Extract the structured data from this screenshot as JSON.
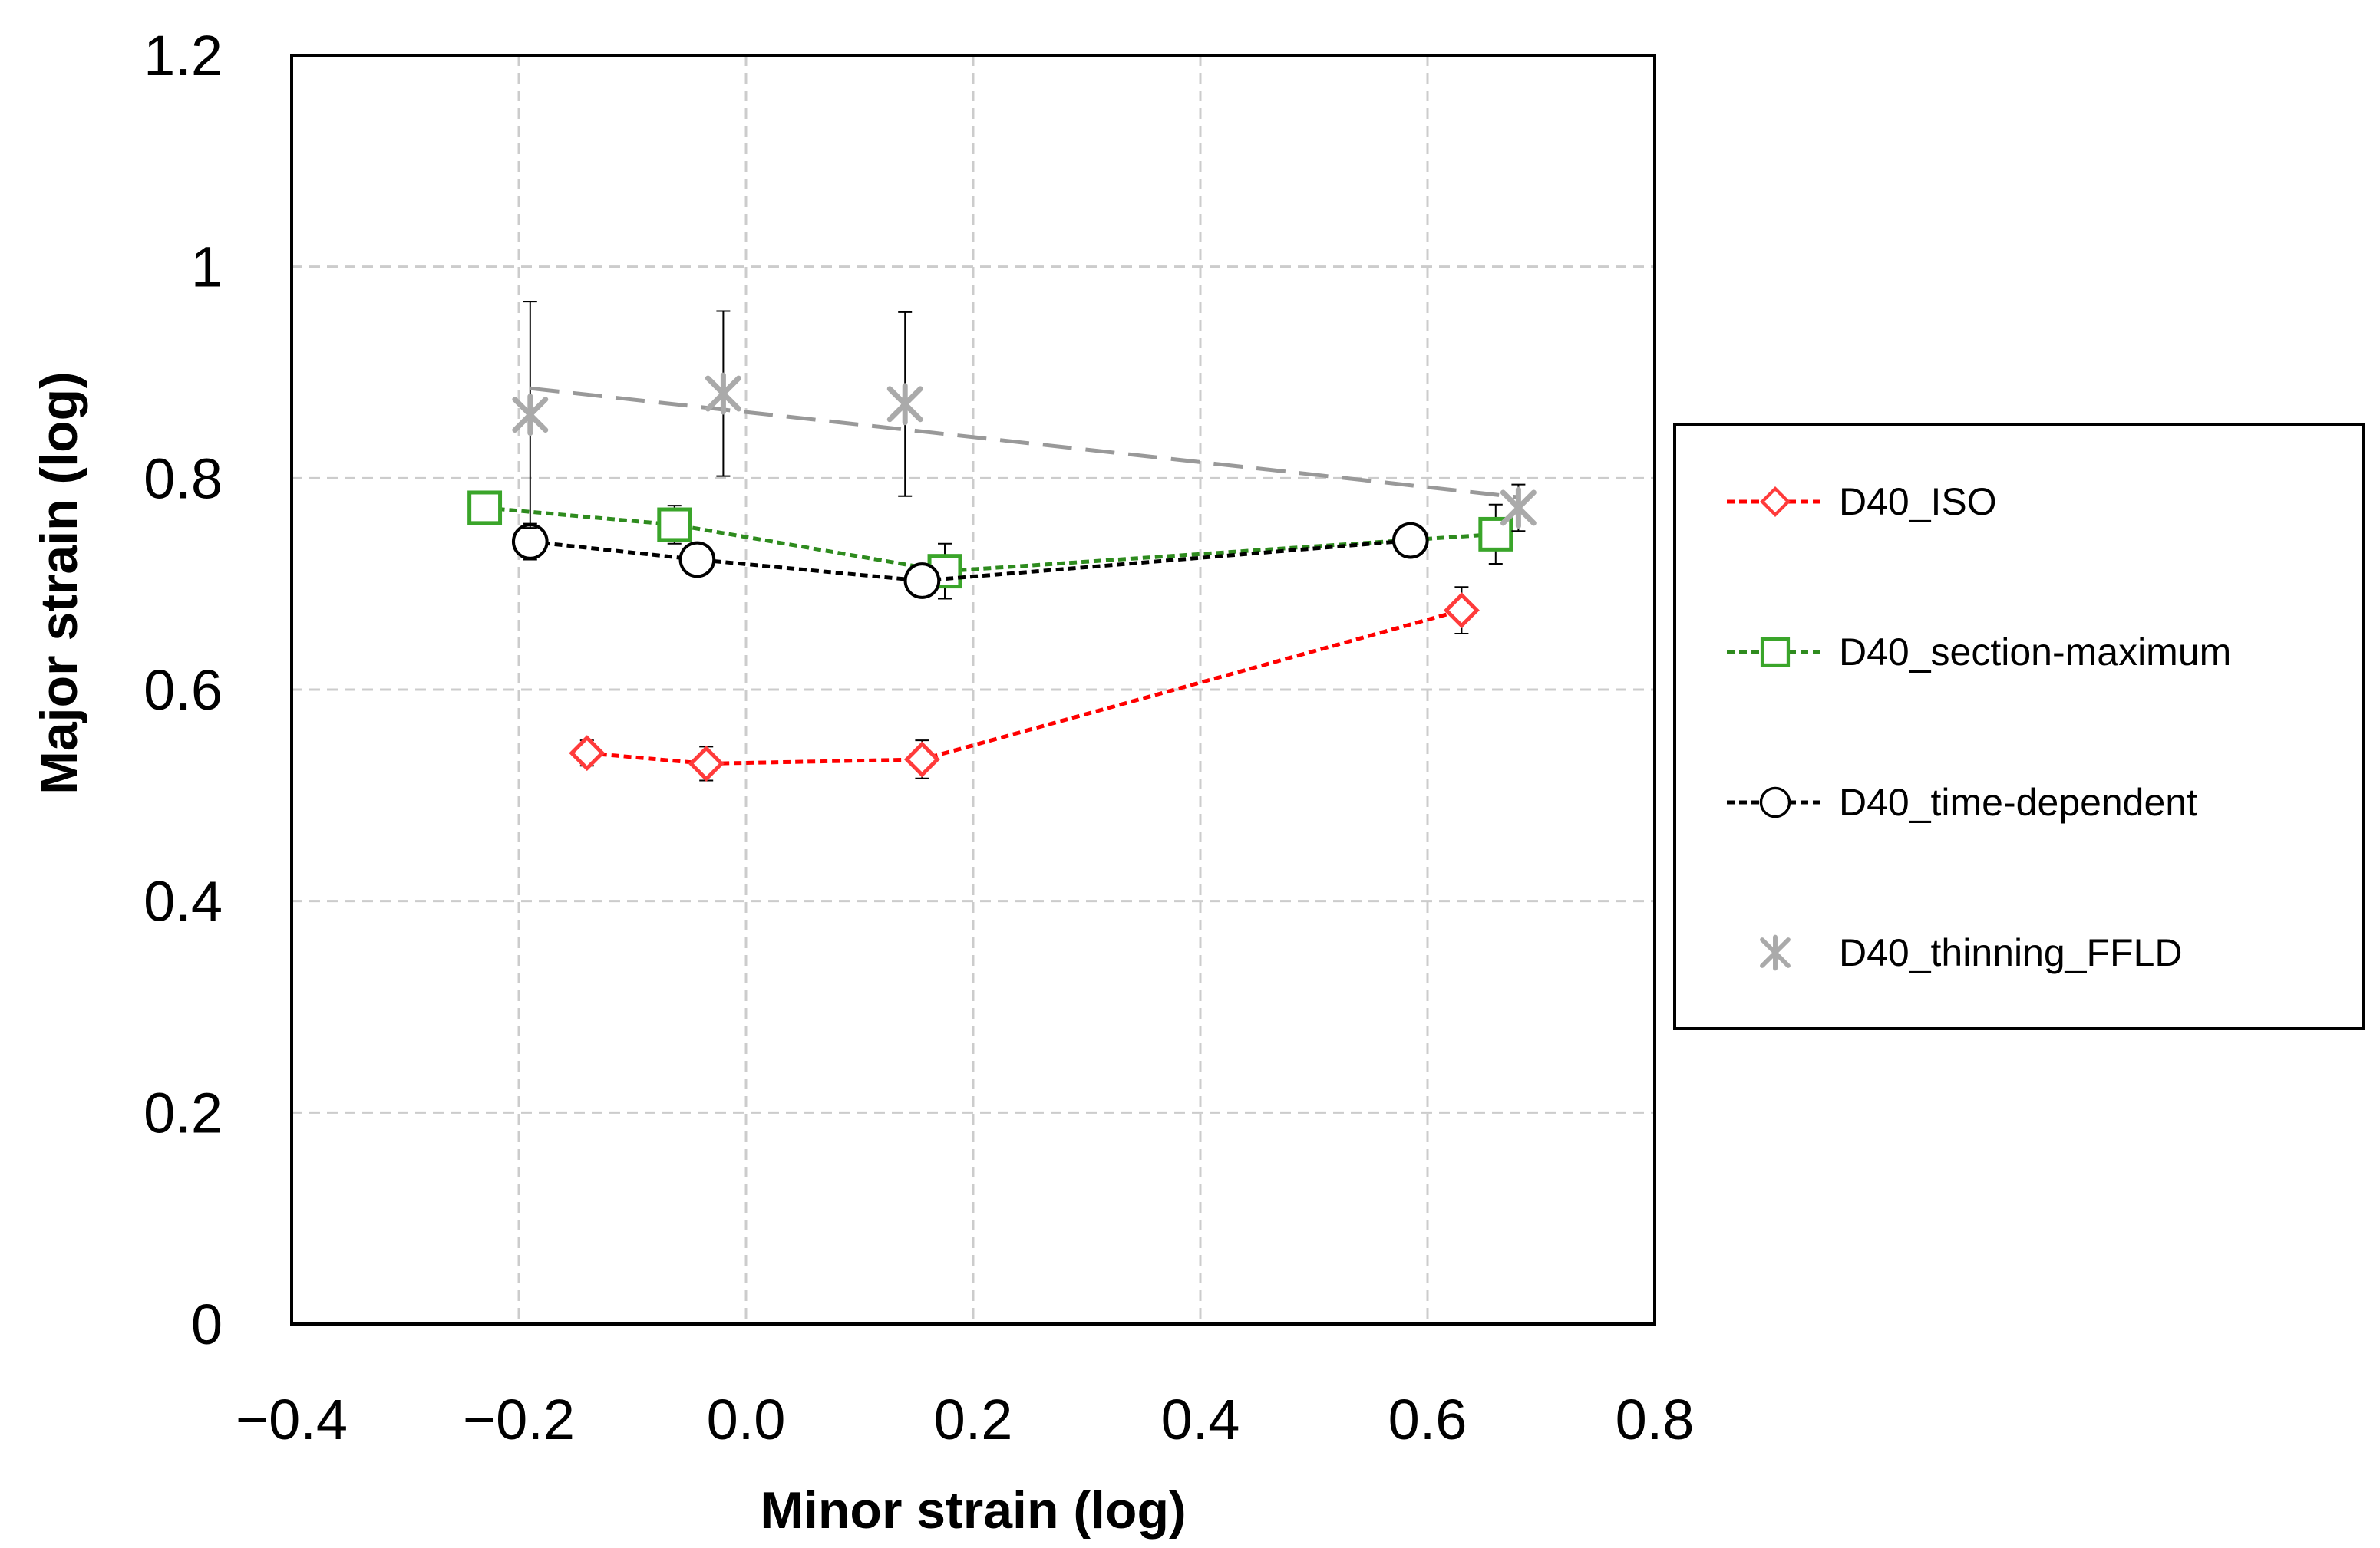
{
  "chart_data": {
    "type": "scatter",
    "title": "",
    "xlabel": "Minor strain (log)",
    "ylabel": "Major strain (log)",
    "xlim": [
      -0.4,
      0.8
    ],
    "ylim": [
      0,
      1.2
    ],
    "xticks": [
      -0.4,
      -0.2,
      0.0,
      0.2,
      0.4,
      0.6,
      0.8
    ],
    "xtick_labels": [
      "−0.4",
      "−0.2",
      "0.0",
      "0.2",
      "0.4",
      "0.6",
      "0.8"
    ],
    "yticks": [
      0,
      0.2,
      0.4,
      0.6,
      0.8,
      1,
      1.2
    ],
    "ytick_labels": [
      "0",
      "0.2",
      "0.4",
      "0.6",
      "0.8",
      "1",
      "1.2"
    ],
    "grid": true,
    "legend_position": "right",
    "series": [
      {
        "name": "D40_ISO",
        "marker": "diamond",
        "line": "dotted",
        "color": "#ff0000",
        "marker_edge": "#ff3b3b",
        "marker_fill": "#ffffff",
        "x": [
          -0.14,
          -0.035,
          0.155,
          0.63
        ],
        "y": [
          0.54,
          0.53,
          0.534,
          0.675
        ],
        "yerr": [
          0.012,
          0.016,
          0.018,
          0.022
        ]
      },
      {
        "name": "D40_section-maximum",
        "marker": "square",
        "line": "dotted",
        "color": "#2e8b1e",
        "marker_edge": "#3aa52a",
        "marker_fill": "#ffffff",
        "x": [
          -0.23,
          -0.063,
          0.175,
          0.66
        ],
        "y": [
          0.772,
          0.756,
          0.712,
          0.747
        ],
        "yerr": [
          0.0,
          0.018,
          0.026,
          0.028
        ]
      },
      {
        "name": "D40_time-dependent",
        "marker": "circle",
        "line": "dotted",
        "color": "#000000",
        "marker_edge": "#000000",
        "marker_fill": "#ffffff",
        "x": [
          -0.19,
          -0.043,
          0.155,
          0.585
        ],
        "y": [
          0.74,
          0.723,
          0.703,
          0.741
        ],
        "yerr": [
          0.017,
          0.015,
          0.0,
          0.0
        ]
      },
      {
        "name": "D40_thinning_FFLD",
        "marker": "asterisk",
        "line": "dashed",
        "color": "#999999",
        "marker_edge": "#aaaaaa",
        "marker_fill": "none",
        "x": [
          -0.19,
          -0.02,
          0.14,
          0.68
        ],
        "y": [
          0.86,
          0.88,
          0.87,
          0.772
        ],
        "yerr": [
          0.107,
          0.078,
          0.087,
          0.022
        ],
        "trendline": {
          "x": [
            -0.19,
            0.68
          ],
          "y": [
            0.885,
            0.782
          ]
        }
      }
    ]
  }
}
